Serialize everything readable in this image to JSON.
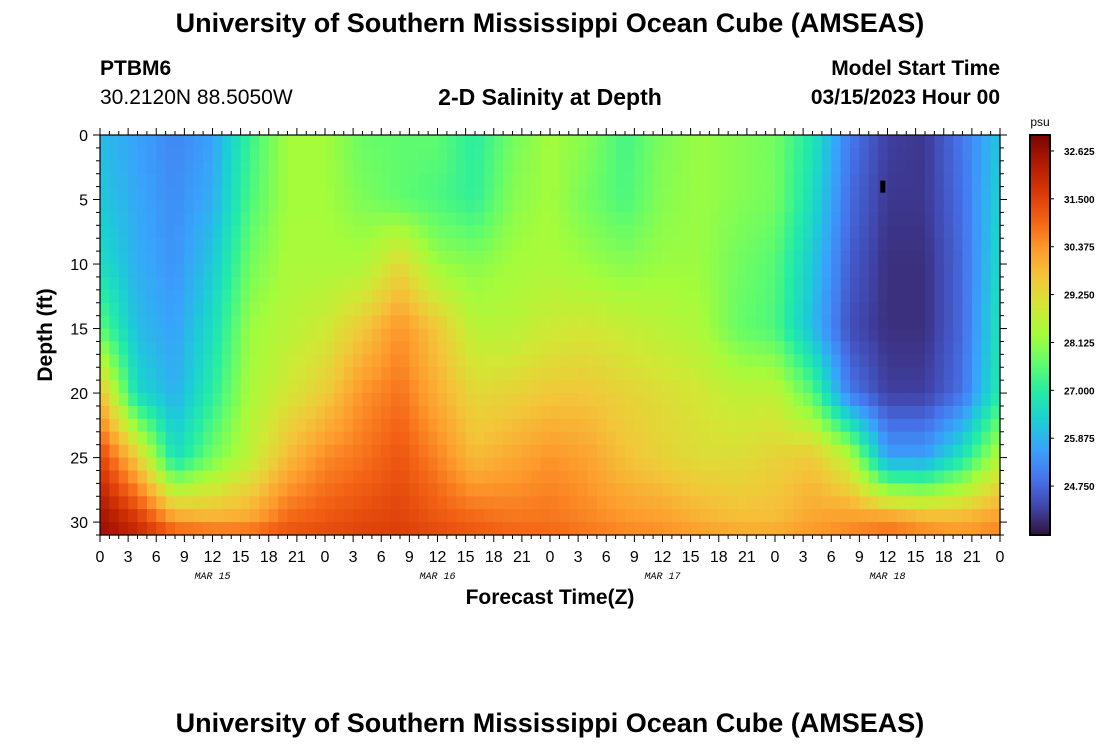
{
  "header": {
    "title": "University of Southern Mississippi Ocean Cube (AMSEAS)",
    "station_id": "PTBM6",
    "station_coords": "30.2120N  88.5050W",
    "chart_title": "2-D Salinity at Depth",
    "model_start_label": "Model Start Time",
    "model_start_value": "03/15/2023 Hour 00"
  },
  "footer": {
    "title": "University of Southern Mississippi Ocean Cube (AMSEAS)"
  },
  "colors": {
    "colormap": [
      "#30123b",
      "#4145ab",
      "#4675ed",
      "#39a2fc",
      "#1bcfd4",
      "#24eca6",
      "#61fc6c",
      "#a4fc3b",
      "#d1e834",
      "#f3c63a",
      "#fe9b2d",
      "#f36315",
      "#d93806",
      "#b11901",
      "#7a0403"
    ]
  },
  "chart_data": {
    "type": "heatmap",
    "title": "2-D Salinity at Depth",
    "xlabel": "Forecast Time(Z)",
    "ylabel": "Depth (ft)",
    "xlim": [
      0,
      96
    ],
    "ylim": [
      0,
      31
    ],
    "x_tick_labels": [
      "0",
      "3",
      "6",
      "9",
      "12",
      "15",
      "18",
      "21",
      "0",
      "3",
      "6",
      "9",
      "12",
      "15",
      "18",
      "21",
      "0",
      "3",
      "6",
      "9",
      "12",
      "15",
      "18",
      "21",
      "0",
      "3",
      "6",
      "9",
      "12",
      "15",
      "18",
      "21",
      "0"
    ],
    "y_ticks": [
      0,
      5,
      10,
      15,
      20,
      25,
      30
    ],
    "date_labels": [
      {
        "label": "MAR 15",
        "hour": 12
      },
      {
        "label": "MAR 16",
        "hour": 36
      },
      {
        "label": "MAR 17",
        "hour": 60
      },
      {
        "label": "MAR 18",
        "hour": 84
      }
    ],
    "colorbar": {
      "unit": "psu",
      "min": 23.6,
      "max": 33.0,
      "tick_labels": [
        "32.625",
        "31.500",
        "30.375",
        "29.250",
        "28.125",
        "27.000",
        "25.875",
        "24.750"
      ]
    },
    "annotation": {
      "hour": 83.5,
      "depth": 4
    },
    "depths": [
      0,
      5,
      10,
      15,
      20,
      25,
      30,
      31
    ],
    "hours": [
      0,
      4,
      8,
      12,
      16,
      20,
      24,
      28,
      32,
      36,
      40,
      44,
      48,
      52,
      56,
      60,
      64,
      68,
      72,
      76,
      80,
      84,
      88,
      92,
      96
    ],
    "salinity": [
      [
        26.0,
        25.6,
        25.2,
        25.6,
        27.2,
        28.3,
        28.3,
        27.7,
        27.6,
        27.6,
        27.0,
        27.8,
        28.3,
        28.0,
        27.3,
        27.9,
        28.2,
        28.0,
        27.8,
        26.8,
        25.0,
        24.2,
        24.1,
        25.0,
        26.2
      ],
      [
        26.2,
        25.7,
        25.3,
        25.8,
        27.4,
        28.3,
        28.3,
        27.9,
        27.6,
        27.4,
        27.1,
        28.0,
        28.3,
        27.8,
        27.4,
        28.0,
        28.2,
        28.0,
        27.8,
        26.6,
        24.8,
        24.1,
        24.1,
        24.9,
        26.4
      ],
      [
        26.6,
        25.8,
        25.4,
        26.2,
        27.8,
        28.4,
        28.4,
        28.4,
        29.3,
        28.2,
        28.0,
        28.3,
        28.4,
        28.2,
        28.0,
        28.2,
        28.2,
        27.8,
        27.5,
        26.2,
        24.6,
        24.0,
        24.0,
        24.8,
        26.6
      ],
      [
        27.6,
        26.0,
        25.6,
        26.6,
        28.2,
        28.6,
        28.9,
        29.6,
        30.4,
        29.6,
        28.6,
        28.6,
        28.9,
        29.0,
        28.8,
        28.6,
        28.4,
        27.7,
        27.4,
        26.0,
        24.4,
        24.0,
        24.0,
        24.8,
        26.8
      ],
      [
        29.8,
        26.5,
        25.8,
        27.0,
        28.4,
        29.0,
        29.5,
        30.4,
        30.8,
        30.0,
        29.3,
        29.4,
        29.6,
        29.6,
        29.4,
        29.2,
        29.0,
        28.7,
        28.7,
        27.5,
        25.0,
        24.2,
        24.2,
        24.9,
        27.0
      ],
      [
        31.5,
        29.5,
        26.6,
        27.8,
        28.7,
        29.8,
        30.5,
        30.8,
        31.2,
        30.6,
        29.8,
        30.1,
        30.4,
        30.2,
        29.7,
        29.4,
        29.2,
        29.2,
        29.4,
        29.6,
        28.6,
        25.6,
        25.6,
        26.8,
        28.6
      ],
      [
        32.6,
        31.8,
        30.4,
        30.1,
        30.2,
        31.0,
        31.2,
        31.4,
        31.5,
        31.2,
        31.0,
        30.8,
        30.8,
        30.6,
        30.4,
        30.3,
        30.0,
        29.8,
        29.8,
        30.2,
        30.4,
        30.6,
        30.2,
        30.1,
        30.4
      ],
      [
        32.6,
        32.0,
        31.2,
        31.1,
        31.1,
        31.3,
        31.4,
        31.5,
        31.6,
        31.4,
        31.2,
        31.0,
        31.0,
        30.8,
        30.6,
        30.5,
        30.4,
        30.2,
        30.2,
        30.4,
        30.6,
        30.8,
        30.6,
        30.4,
        30.6
      ]
    ]
  }
}
